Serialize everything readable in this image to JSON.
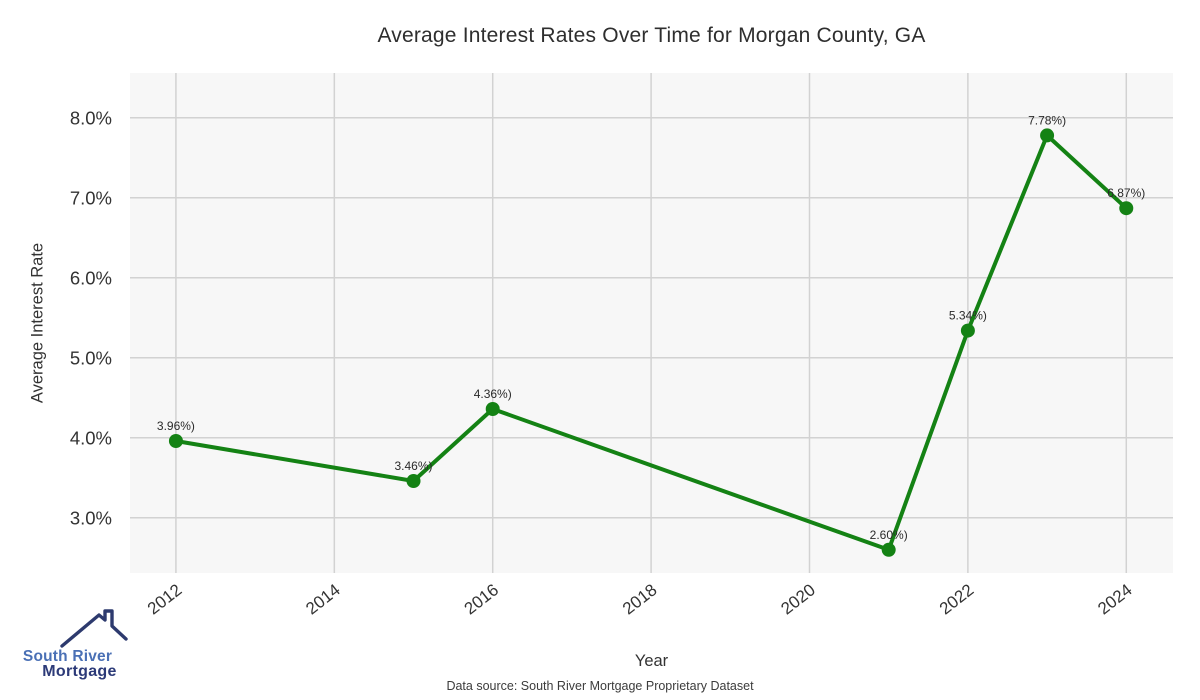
{
  "page": {
    "footer": "Data source: South River Mortgage Proprietary Dataset"
  },
  "logo": {
    "line1": "South River",
    "line2": "Mortgage",
    "icon": "house-roof-chimney-icon",
    "color_primary": "#4a70b5",
    "color_secondary": "#2c3a78",
    "icon_color": "#2d3a6e"
  },
  "chart_data": {
    "type": "line",
    "title": "Average Interest Rates Over Time for Morgan County, GA",
    "xlabel": "Year",
    "ylabel": "Average Interest Rate",
    "x": [
      2012,
      2015,
      2016,
      2021,
      2022,
      2023,
      2024
    ],
    "y": [
      3.96,
      3.46,
      4.36,
      2.6,
      5.34,
      7.78,
      6.87
    ],
    "point_labels": [
      "3.96%)",
      "3.46%)",
      "4.36%)",
      "2.60%)",
      "5.34%)",
      "7.78%)",
      "6.87%)"
    ],
    "x_ticks": {
      "values": [
        2012,
        2014,
        2016,
        2018,
        2020,
        2022,
        2024
      ],
      "labels": [
        "2012",
        "2014",
        "2016",
        "2018",
        "2020",
        "2022",
        "2024"
      ]
    },
    "y_ticks": {
      "values": [
        3,
        4,
        5,
        6,
        7,
        8
      ],
      "labels": [
        "3.0%",
        "4.0%",
        "5.0%",
        "6.0%",
        "7.0%",
        "8.0%"
      ]
    },
    "xlim": [
      2011.42,
      2024.59
    ],
    "ylim": [
      2.31,
      8.56
    ],
    "grid": true,
    "legend": "none",
    "line_color": "#148214",
    "marker_color": "#148214",
    "panel_bg": "#f7f7f7",
    "grid_color": "#d2d2d2",
    "tick_color": "#333333",
    "label_color": "#2a2a2a"
  }
}
